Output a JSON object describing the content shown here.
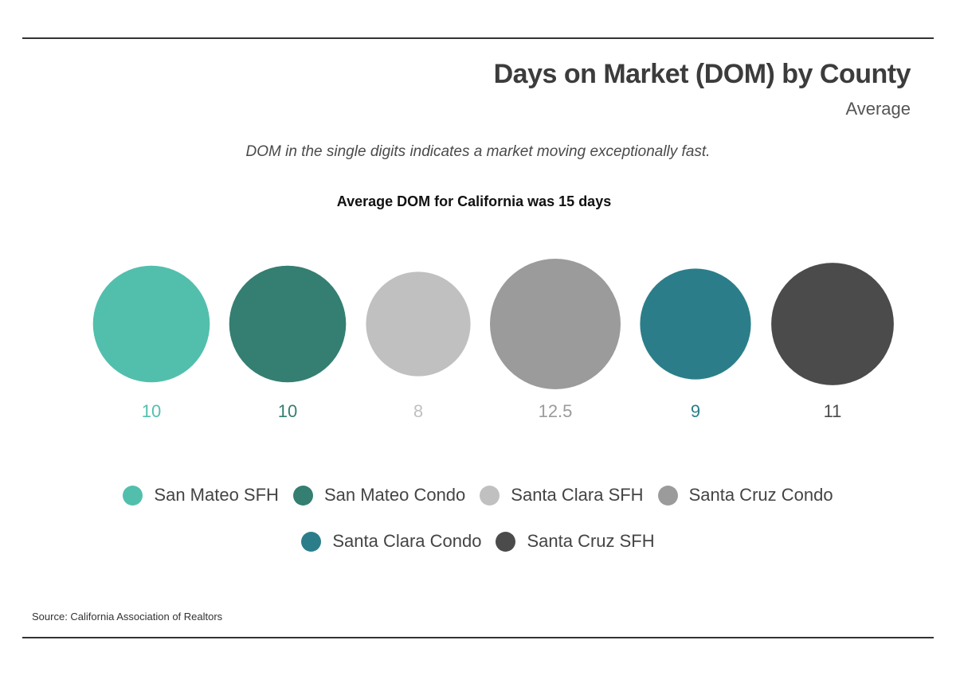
{
  "header": {
    "title": "Days on Market (DOM) by County",
    "subtitle": "Average"
  },
  "note": "DOM in the single digits indicates a market moving exceptionally fast.",
  "headline": "Average DOM for California was 15 days",
  "chart_data": {
    "type": "bubble",
    "title": "Days on Market (DOM) by County",
    "subtitle": "Average",
    "legend_placement": "bottom",
    "series": [
      {
        "name": "San Mateo SFH",
        "value": 10,
        "label": "10",
        "color": "#52bfad"
      },
      {
        "name": "San Mateo Condo",
        "value": 10,
        "label": "10",
        "color": "#347f71"
      },
      {
        "name": "Santa Clara SFH",
        "value": 8,
        "label": "8",
        "color": "#c0c0c0"
      },
      {
        "name": "Santa Cruz Condo",
        "value": 12.5,
        "label": "12.5",
        "color": "#9b9b9b"
      },
      {
        "name": "Santa Clara Condo",
        "value": 9,
        "label": "9",
        "color": "#2b7e89"
      },
      {
        "name": "Santa Cruz SFH",
        "value": 11,
        "label": "11",
        "color": "#4b4b4b"
      }
    ]
  },
  "source": "Source:  California Association of Realtors"
}
